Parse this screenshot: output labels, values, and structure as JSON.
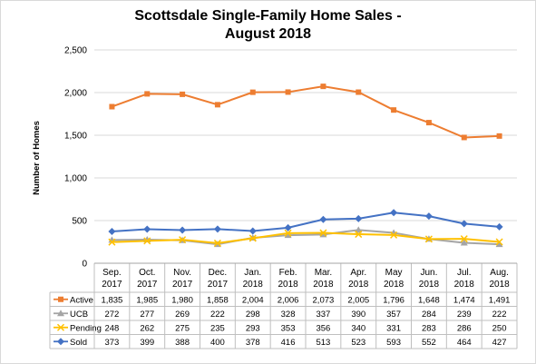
{
  "chart_data": {
    "type": "line",
    "title_line1": "Scottsdale Single-Family Home Sales -",
    "title_line2": "August 2018",
    "ylabel": "Number of Homes",
    "ylim": [
      0,
      2500
    ],
    "yticks": [
      0,
      500,
      1000,
      1500,
      2000,
      2500
    ],
    "ytick_labels": [
      "0",
      "500",
      "1,000",
      "1,500",
      "2,000",
      "2,500"
    ],
    "categories": [
      [
        "Sep.",
        "2017"
      ],
      [
        "Oct.",
        "2017"
      ],
      [
        "Nov.",
        "2017"
      ],
      [
        "Dec.",
        "2017"
      ],
      [
        "Jan.",
        "2018"
      ],
      [
        "Feb.",
        "2018"
      ],
      [
        "Mar.",
        "2018"
      ],
      [
        "Apr.",
        "2018"
      ],
      [
        "May",
        "2018"
      ],
      [
        "Jun.",
        "2018"
      ],
      [
        "Jul.",
        "2018"
      ],
      [
        "Aug.",
        "2018"
      ]
    ],
    "grid": true,
    "legend": "data-table",
    "series": [
      {
        "name": "Active",
        "color": "#ed7d31",
        "marker": "square",
        "values": [
          1835,
          1985,
          1980,
          1858,
          2004,
          2006,
          2073,
          2005,
          1796,
          1648,
          1474,
          1491
        ],
        "labels": [
          "1,835",
          "1,985",
          "1,980",
          "1,858",
          "2,004",
          "2,006",
          "2,073",
          "2,005",
          "1,796",
          "1,648",
          "1,474",
          "1,491"
        ]
      },
      {
        "name": "UCB",
        "color": "#a5a5a5",
        "marker": "triangle",
        "values": [
          272,
          277,
          269,
          222,
          298,
          328,
          337,
          390,
          357,
          284,
          239,
          222
        ],
        "labels": [
          "272",
          "277",
          "269",
          "222",
          "298",
          "328",
          "337",
          "390",
          "357",
          "284",
          "239",
          "222"
        ]
      },
      {
        "name": "Pending",
        "color": "#ffc000",
        "marker": "x",
        "values": [
          248,
          262,
          275,
          235,
          293,
          353,
          356,
          340,
          331,
          283,
          286,
          250
        ],
        "labels": [
          "248",
          "262",
          "275",
          "235",
          "293",
          "353",
          "356",
          "340",
          "331",
          "283",
          "286",
          "250"
        ]
      },
      {
        "name": "Sold",
        "color": "#4472c4",
        "marker": "diamond",
        "values": [
          373,
          399,
          388,
          400,
          378,
          416,
          513,
          523,
          593,
          552,
          464,
          427
        ],
        "labels": [
          "373",
          "399",
          "388",
          "400",
          "378",
          "416",
          "513",
          "523",
          "593",
          "552",
          "464",
          "427"
        ]
      }
    ]
  }
}
